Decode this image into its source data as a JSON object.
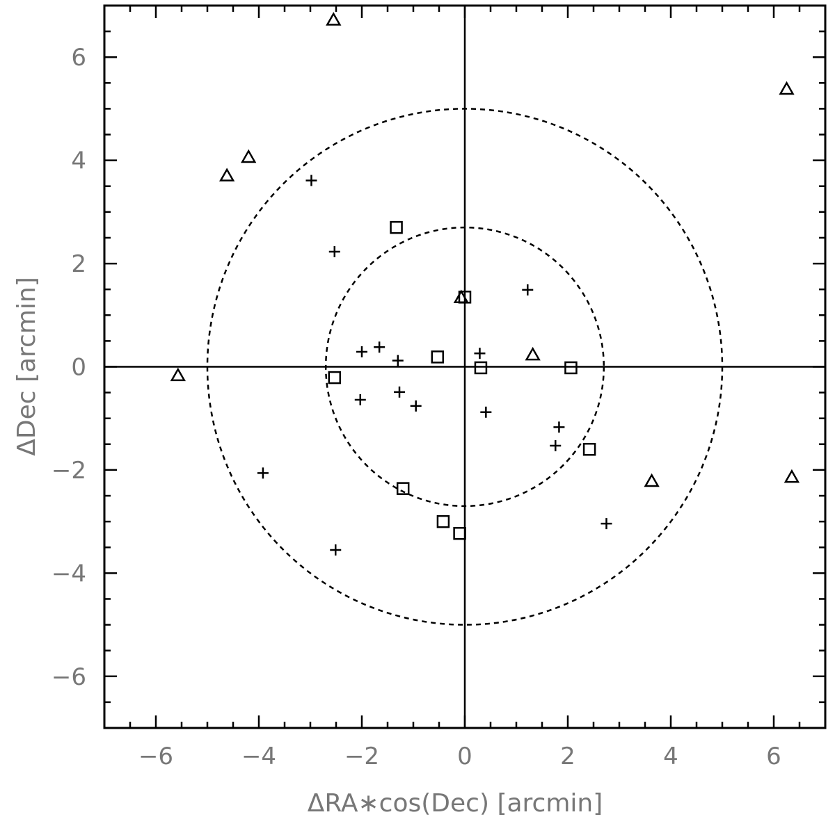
{
  "chart_data": {
    "type": "scatter",
    "title": "",
    "xlabel": "ΔRA∗cos(Dec) [arcmin]",
    "ylabel": "ΔDec [arcmin]",
    "xlim": [
      -7,
      7
    ],
    "ylim": [
      -7,
      7
    ],
    "x_ticks": [
      "−6",
      "−4",
      "−2",
      "0",
      "2",
      "4",
      "6"
    ],
    "y_ticks": [
      "−6",
      "−4",
      "−2",
      "0",
      "2",
      "4",
      "6"
    ],
    "grid": false,
    "legend": "none",
    "reference_lines": {
      "x": 0,
      "y": 0
    },
    "circles": [
      {
        "radius": 2.7,
        "style": "dashed"
      },
      {
        "radius": 5.0,
        "style": "dashed"
      }
    ],
    "series": [
      {
        "marker": "plus",
        "points": [
          [
            -2.98,
            3.61
          ],
          [
            -2.53,
            2.23
          ],
          [
            1.22,
            1.49
          ],
          [
            -2.0,
            0.29
          ],
          [
            -1.66,
            0.38
          ],
          [
            -1.3,
            0.12
          ],
          [
            0.29,
            0.26
          ],
          [
            -2.03,
            -0.64
          ],
          [
            -1.27,
            -0.49
          ],
          [
            -0.95,
            -0.76
          ],
          [
            0.41,
            -0.88
          ],
          [
            1.83,
            -1.17
          ],
          [
            1.76,
            -1.53
          ],
          [
            -3.92,
            -2.06
          ],
          [
            2.75,
            -3.04
          ],
          [
            -2.51,
            -3.55
          ]
        ]
      },
      {
        "marker": "square",
        "points": [
          [
            -1.33,
            2.7
          ],
          [
            0.0,
            1.35
          ],
          [
            -0.53,
            0.19
          ],
          [
            -2.53,
            -0.21
          ],
          [
            0.31,
            -0.02
          ],
          [
            2.06,
            -0.02
          ],
          [
            2.42,
            -1.6
          ],
          [
            -1.2,
            -2.36
          ],
          [
            -0.42,
            -3.0
          ],
          [
            -0.1,
            -3.23
          ]
        ]
      },
      {
        "marker": "triangle",
        "points": [
          [
            -2.55,
            6.72
          ],
          [
            6.25,
            5.38
          ],
          [
            -4.2,
            4.06
          ],
          [
            -4.62,
            3.7
          ],
          [
            -0.07,
            1.34
          ],
          [
            1.32,
            0.23
          ],
          [
            -5.57,
            -0.17
          ],
          [
            3.63,
            -2.22
          ],
          [
            6.35,
            -2.14
          ]
        ]
      }
    ]
  }
}
